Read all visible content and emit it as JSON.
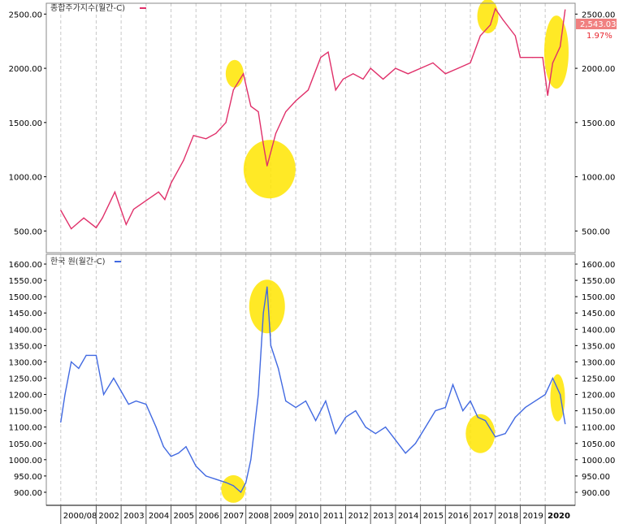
{
  "chart_data": [
    {
      "type": "line",
      "legend_label": "종합주가지수(월간-C)",
      "color": "#e0306a",
      "last_value_label": "2,543.03",
      "change_label": "1.97%",
      "ylim": [
        300,
        2600
      ],
      "yticks": [
        "2500.00",
        "2000.00",
        "1500.00",
        "1000.00",
        "500.00"
      ],
      "ytick_values": [
        2500,
        2000,
        1500,
        1000,
        500
      ],
      "x": [
        2000.58,
        2001.0,
        2001.5,
        2002.0,
        2002.25,
        2002.75,
        2003.2,
        2003.5,
        2004.0,
        2004.5,
        2004.75,
        2005.0,
        2005.5,
        2005.9,
        2006.4,
        2006.8,
        2007.2,
        2007.5,
        2007.9,
        2008.2,
        2008.5,
        2008.7,
        2008.85,
        2009.2,
        2009.6,
        2010.0,
        2010.5,
        2011.0,
        2011.3,
        2011.6,
        2011.9,
        2012.3,
        2012.7,
        2013.0,
        2013.5,
        2014.0,
        2014.5,
        2015.0,
        2015.5,
        2016.0,
        2016.5,
        2017.0,
        2017.4,
        2017.8,
        2018.0,
        2018.3,
        2018.8,
        2019.0,
        2019.5,
        2019.9,
        2020.1,
        2020.3,
        2020.6,
        2020.8
      ],
      "values": [
        690,
        520,
        620,
        530,
        620,
        860,
        560,
        700,
        780,
        860,
        790,
        940,
        1150,
        1380,
        1350,
        1400,
        1500,
        1800,
        1950,
        1650,
        1600,
        1300,
        1100,
        1400,
        1600,
        1700,
        1800,
        2100,
        2150,
        1800,
        1900,
        1950,
        1900,
        2000,
        1900,
        2000,
        1950,
        2000,
        2050,
        1950,
        2000,
        2050,
        2300,
        2400,
        2550,
        2450,
        2300,
        2100,
        2100,
        2100,
        1750,
        2050,
        2200,
        2540
      ],
      "marker_label": "2020"
    },
    {
      "type": "line",
      "legend_label": "한국 원(월간-C)",
      "color": "#4169e1",
      "ylim": [
        860,
        1630
      ],
      "yticks": [
        "1600.00",
        "1550.00",
        "1500.00",
        "1450.00",
        "1400.00",
        "1350.00",
        "1300.00",
        "1250.00",
        "1200.00",
        "1150.00",
        "1100.00",
        "1050.00",
        "1000.00",
        "950.00",
        "900.00"
      ],
      "ytick_values": [
        1600,
        1550,
        1500,
        1450,
        1400,
        1350,
        1300,
        1250,
        1200,
        1150,
        1100,
        1050,
        1000,
        950,
        900
      ],
      "x": [
        2000.58,
        2000.75,
        2001.0,
        2001.3,
        2001.6,
        2002.0,
        2002.3,
        2002.7,
        2003.0,
        2003.3,
        2003.6,
        2004.0,
        2004.4,
        2004.7,
        2005.0,
        2005.3,
        2005.6,
        2006.0,
        2006.4,
        2006.8,
        2007.2,
        2007.5,
        2007.8,
        2008.0,
        2008.2,
        2008.5,
        2008.7,
        2008.85,
        2009.0,
        2009.3,
        2009.6,
        2010.0,
        2010.4,
        2010.8,
        2011.2,
        2011.6,
        2012.0,
        2012.4,
        2012.8,
        2013.2,
        2013.6,
        2014.0,
        2014.4,
        2014.8,
        2015.2,
        2015.6,
        2016.0,
        2016.3,
        2016.7,
        2017.0,
        2017.3,
        2017.6,
        2018.0,
        2018.4,
        2018.8,
        2019.2,
        2019.6,
        2020.0,
        2020.3,
        2020.6,
        2020.8
      ],
      "values": [
        1115,
        1200,
        1300,
        1280,
        1320,
        1320,
        1200,
        1250,
        1210,
        1170,
        1180,
        1170,
        1100,
        1040,
        1010,
        1020,
        1040,
        980,
        950,
        940,
        930,
        920,
        900,
        930,
        1000,
        1200,
        1450,
        1530,
        1350,
        1280,
        1180,
        1160,
        1180,
        1120,
        1180,
        1080,
        1130,
        1150,
        1100,
        1080,
        1100,
        1060,
        1020,
        1050,
        1100,
        1150,
        1160,
        1230,
        1150,
        1180,
        1130,
        1120,
        1070,
        1080,
        1130,
        1160,
        1180,
        1200,
        1250,
        1200,
        1110
      ],
      "marker_label": "2020"
    }
  ],
  "xaxis": {
    "labels": [
      "2000/08",
      "2002",
      "2003",
      "2004",
      "2005",
      "2006",
      "2007",
      "2008",
      "2009",
      "2010",
      "2011",
      "2012",
      "2013",
      "2014",
      "2015",
      "2016",
      "2017",
      "2018",
      "2019",
      "2020"
    ],
    "label_values": [
      2000.58,
      2002,
      2003,
      2004,
      2005,
      2006,
      2007,
      2008,
      2009,
      2010,
      2011,
      2012,
      2013,
      2014,
      2015,
      2016,
      2017,
      2018,
      2019,
      2020
    ],
    "range": [
      2000.0,
      2021.2
    ]
  },
  "colors": {
    "grid": "#c8c8c8",
    "axis": "#000000",
    "highlight": "#ffe500",
    "badge": "#f08080"
  }
}
